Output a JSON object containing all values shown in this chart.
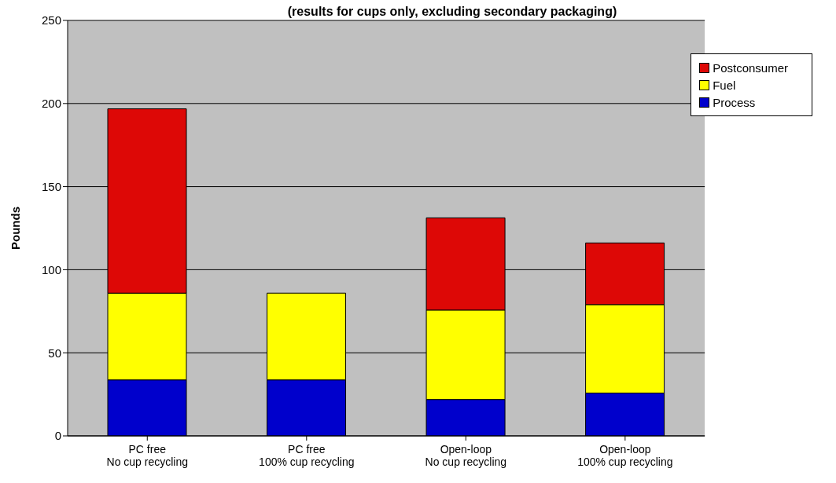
{
  "chart_data": {
    "type": "bar",
    "title": "(results for cups only, excluding secondary packaging)",
    "ylabel": "Pounds",
    "categories": [
      "PC free\nNo cup recycling",
      "PC free\n100% cup recycling",
      "Open-loop\nNo cup recycling",
      "Open-loop\n100% cup recycling"
    ],
    "series": [
      {
        "name": "Process",
        "color": "#0000cc",
        "values": [
          33.7,
          33.7,
          21.9,
          25.8
        ]
      },
      {
        "name": "Fuel",
        "color": "#ffff00",
        "values": [
          52.2,
          52.2,
          53.8,
          53.2
        ]
      },
      {
        "name": "Postconsumer",
        "color": "#dd0806",
        "values": [
          110.9,
          0,
          55.5,
          37.1
        ]
      }
    ],
    "stacked": true,
    "ylim": [
      0,
      250
    ],
    "yticks": [
      0,
      50,
      100,
      150,
      200,
      250
    ],
    "grid": "y",
    "legend": "top right"
  }
}
